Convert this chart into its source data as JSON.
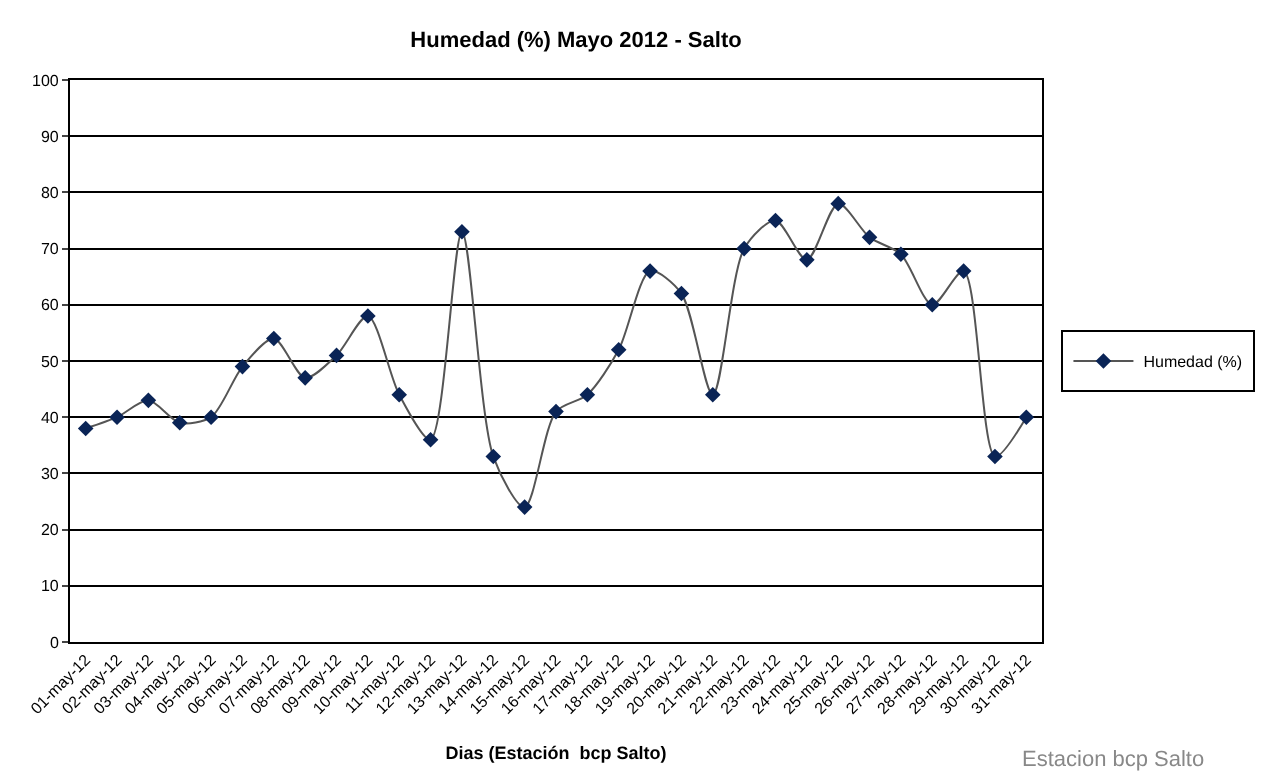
{
  "chart_data": {
    "type": "line",
    "title": "Humedad (%) Mayo 2012 - Salto",
    "xlabel": "Dias (Estación  bcp Salto)",
    "categories": [
      "01-may-12",
      "02-may-12",
      "03-may-12",
      "04-may-12",
      "05-may-12",
      "06-may-12",
      "07-may-12",
      "08-may-12",
      "09-may-12",
      "10-may-12",
      "11-may-12",
      "12-may-12",
      "13-may-12",
      "14-may-12",
      "15-may-12",
      "16-may-12",
      "17-may-12",
      "18-may-12",
      "19-may-12",
      "20-may-12",
      "21-may-12",
      "22-may-12",
      "23-may-12",
      "24-may-12",
      "25-may-12",
      "26-may-12",
      "27-may-12",
      "28-may-12",
      "29-may-12",
      "30-may-12",
      "31-may-12"
    ],
    "series": [
      {
        "name": "Humedad (%)",
        "color": "#0a2456",
        "values": [
          38,
          40,
          43,
          39,
          40,
          49,
          54,
          47,
          51,
          58,
          44,
          36,
          73,
          33,
          24,
          41,
          44,
          52,
          66,
          62,
          44,
          70,
          75,
          68,
          78,
          72,
          69,
          60,
          66,
          33,
          40
        ]
      }
    ],
    "ylim": [
      0,
      100
    ],
    "yticks": [
      0,
      10,
      20,
      30,
      40,
      50,
      60,
      70,
      80,
      90,
      100
    ],
    "grid": "y",
    "legend": "right",
    "marker": "diamond",
    "line_style": "solid",
    "annotations": [
      "Estacion bcp Salto"
    ]
  }
}
